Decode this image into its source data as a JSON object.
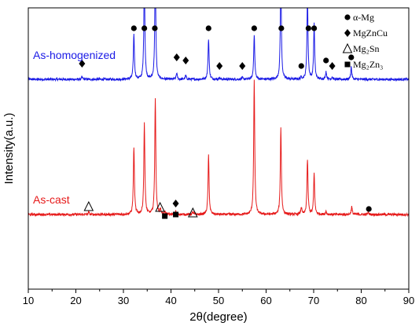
{
  "chart_data": {
    "type": "line",
    "xlabel": "2θ(degree)",
    "ylabel": "Intensity(a.u.)",
    "xlim": [
      10,
      90
    ],
    "xticks": [
      10,
      20,
      30,
      40,
      50,
      60,
      70,
      80,
      90
    ],
    "grid": false,
    "legend_position": "top-right",
    "series": [
      {
        "name": "As-homogenized",
        "color": "#1a1ae6",
        "offset": 1.72,
        "peaks": [
          {
            "x": 21.3,
            "h": 0.03
          },
          {
            "x": 32.2,
            "h": 0.58
          },
          {
            "x": 34.4,
            "h": 1.3
          },
          {
            "x": 36.7,
            "h": 1.4
          },
          {
            "x": 41.2,
            "h": 0.08
          },
          {
            "x": 43.1,
            "h": 0.05
          },
          {
            "x": 47.9,
            "h": 0.52
          },
          {
            "x": 50.2,
            "h": 0.02
          },
          {
            "x": 55.0,
            "h": 0.02
          },
          {
            "x": 57.5,
            "h": 0.57
          },
          {
            "x": 63.1,
            "h": 1.35
          },
          {
            "x": 67.4,
            "h": 0.03
          },
          {
            "x": 68.7,
            "h": 1.05
          },
          {
            "x": 70.1,
            "h": 0.7
          },
          {
            "x": 72.6,
            "h": 0.1
          },
          {
            "x": 73.9,
            "h": 0.03
          },
          {
            "x": 77.9,
            "h": 0.16
          }
        ]
      },
      {
        "name": "As-cast",
        "color": "#e61a1a",
        "offset": 0,
        "peaks": [
          {
            "x": 22.7,
            "h": 0.03
          },
          {
            "x": 32.2,
            "h": 0.86
          },
          {
            "x": 34.4,
            "h": 1.16
          },
          {
            "x": 36.7,
            "h": 1.48
          },
          {
            "x": 37.8,
            "h": 0.06
          },
          {
            "x": 38.7,
            "h": 0.03
          },
          {
            "x": 41.0,
            "h": 0.04
          },
          {
            "x": 44.6,
            "h": 0.03
          },
          {
            "x": 47.9,
            "h": 0.75
          },
          {
            "x": 57.5,
            "h": 1.7
          },
          {
            "x": 63.1,
            "h": 1.1
          },
          {
            "x": 67.4,
            "h": 0.09
          },
          {
            "x": 68.7,
            "h": 0.7
          },
          {
            "x": 70.1,
            "h": 0.52
          },
          {
            "x": 72.6,
            "h": 0.04
          },
          {
            "x": 78.0,
            "h": 0.1
          },
          {
            "x": 81.5,
            "h": 0.03
          }
        ]
      }
    ],
    "series_labels": [
      "As-homogenized",
      "As-cast"
    ],
    "legend": [
      {
        "symbol": "circle",
        "label": "α-Mg"
      },
      {
        "symbol": "diamond",
        "label": "MgZnCu"
      },
      {
        "symbol": "triangle-open",
        "label": "Mg₂Sn"
      },
      {
        "symbol": "square",
        "label": "Mg₂Zn₃"
      }
    ],
    "phase_markers": [
      {
        "series": "As-homogenized",
        "symbol": "diamond",
        "x": 21.3,
        "y": 0.2
      },
      {
        "series": "As-homogenized",
        "symbol": "circle",
        "x": 32.2,
        "y": 0.65
      },
      {
        "series": "As-homogenized",
        "symbol": "circle",
        "x": 34.4,
        "y": 0.65
      },
      {
        "series": "As-homogenized",
        "symbol": "circle",
        "x": 36.6,
        "y": 0.65
      },
      {
        "series": "As-homogenized",
        "symbol": "diamond",
        "x": 41.2,
        "y": 0.28
      },
      {
        "series": "As-homogenized",
        "symbol": "diamond",
        "x": 43.1,
        "y": 0.24
      },
      {
        "series": "As-homogenized",
        "symbol": "circle",
        "x": 47.9,
        "y": 0.65
      },
      {
        "series": "As-homogenized",
        "symbol": "diamond",
        "x": 50.2,
        "y": 0.17
      },
      {
        "series": "As-homogenized",
        "symbol": "diamond",
        "x": 55.0,
        "y": 0.17
      },
      {
        "series": "As-homogenized",
        "symbol": "circle",
        "x": 57.5,
        "y": 0.65
      },
      {
        "series": "As-homogenized",
        "symbol": "circle",
        "x": 63.2,
        "y": 0.65
      },
      {
        "series": "As-homogenized",
        "symbol": "circle",
        "x": 67.4,
        "y": 0.17
      },
      {
        "series": "As-homogenized",
        "symbol": "circle",
        "x": 68.9,
        "y": 0.65
      },
      {
        "series": "As-homogenized",
        "symbol": "circle",
        "x": 70.1,
        "y": 0.65
      },
      {
        "series": "As-homogenized",
        "symbol": "circle",
        "x": 72.6,
        "y": 0.24
      },
      {
        "series": "As-homogenized",
        "symbol": "diamond",
        "x": 73.9,
        "y": 0.17
      },
      {
        "series": "As-homogenized",
        "symbol": "circle",
        "x": 77.9,
        "y": 0.28
      },
      {
        "series": "As-cast",
        "symbol": "triangle-open",
        "x": 22.7,
        "y": 0.1
      },
      {
        "series": "As-cast",
        "symbol": "triangle-open",
        "x": 37.7,
        "y": 0.09
      },
      {
        "series": "As-cast",
        "symbol": "square",
        "x": 38.7,
        "y": -0.02
      },
      {
        "series": "As-cast",
        "symbol": "diamond",
        "x": 41.0,
        "y": 0.14
      },
      {
        "series": "As-cast",
        "symbol": "square",
        "x": 41.0,
        "y": 0.0
      },
      {
        "series": "As-cast",
        "symbol": "triangle-open",
        "x": 44.6,
        "y": 0.02
      },
      {
        "series": "As-cast",
        "symbol": "circle",
        "x": 81.6,
        "y": 0.07
      }
    ]
  }
}
